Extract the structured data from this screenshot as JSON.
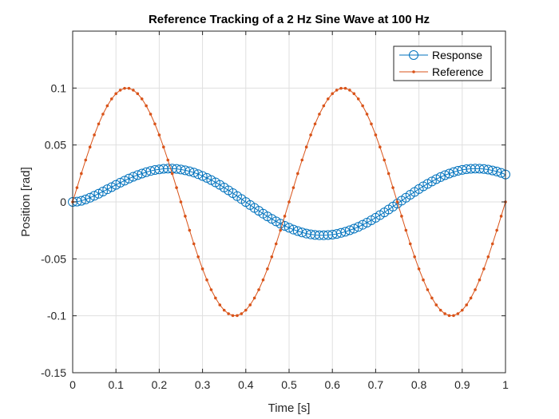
{
  "chart_data": {
    "type": "line",
    "title": "Reference Tracking of a 2 Hz Sine Wave at 100 Hz",
    "xlabel": "Time [s]",
    "ylabel": "Position [rad]",
    "xlim": [
      0,
      1
    ],
    "ylim": [
      -0.15,
      0.15
    ],
    "xticks": [
      0,
      0.1,
      0.2,
      0.3,
      0.4,
      0.5,
      0.6,
      0.7,
      0.8,
      0.9,
      1
    ],
    "xtick_labels": [
      "0",
      "0.1",
      "0.2",
      "0.3",
      "0.4",
      "0.5",
      "0.6",
      "0.7",
      "0.8",
      "0.9",
      "1"
    ],
    "yticks": [
      -0.15,
      -0.1,
      -0.05,
      0,
      0.05,
      0.1
    ],
    "ytick_labels": [
      "-0.15",
      "-0.1",
      "-0.05",
      "0",
      "0.05",
      "0.1"
    ],
    "grid": true,
    "legend_position": "top-right",
    "x": [
      0.0,
      0.01,
      0.02,
      0.03,
      0.04,
      0.05,
      0.06,
      0.07,
      0.08,
      0.09,
      0.1,
      0.11,
      0.12,
      0.13,
      0.14,
      0.15,
      0.16,
      0.17,
      0.18,
      0.19,
      0.2,
      0.21,
      0.22,
      0.23,
      0.24,
      0.25,
      0.26,
      0.27,
      0.28,
      0.29,
      0.3,
      0.31,
      0.32,
      0.33,
      0.34,
      0.35,
      0.36,
      0.37,
      0.38,
      0.39,
      0.4,
      0.41,
      0.42,
      0.43,
      0.44,
      0.45,
      0.46,
      0.47,
      0.48,
      0.49,
      0.5,
      0.51,
      0.52,
      0.53,
      0.54,
      0.55,
      0.56,
      0.57,
      0.58,
      0.59,
      0.6,
      0.61,
      0.62,
      0.63,
      0.64,
      0.65,
      0.66,
      0.67,
      0.68,
      0.69,
      0.7,
      0.71,
      0.72,
      0.73,
      0.74,
      0.75,
      0.76,
      0.77,
      0.78,
      0.79,
      0.8,
      0.81,
      0.82,
      0.83,
      0.84,
      0.85,
      0.86,
      0.87,
      0.88,
      0.89,
      0.9,
      0.91,
      0.92,
      0.93,
      0.94,
      0.95,
      0.96,
      0.97,
      0.98,
      0.99,
      1.0
    ],
    "series": [
      {
        "name": "Response",
        "color": "#0072BD",
        "marker": "circle",
        "values": [
          0.0,
          0.0003,
          0.001,
          0.0022,
          0.0037,
          0.0054,
          0.0072,
          0.0091,
          0.0111,
          0.013,
          0.015,
          0.0169,
          0.0187,
          0.0205,
          0.0221,
          0.0236,
          0.0249,
          0.0261,
          0.0272,
          0.028,
          0.0286,
          0.0291,
          0.0293,
          0.0293,
          0.029,
          0.0285,
          0.0278,
          0.0269,
          0.0258,
          0.0244,
          0.0228,
          0.0211,
          0.0192,
          0.0172,
          0.015,
          0.0126,
          0.0102,
          0.0077,
          0.0051,
          0.0025,
          -0.0001,
          -0.0027,
          -0.0053,
          -0.0078,
          -0.0103,
          -0.0127,
          -0.0149,
          -0.0171,
          -0.0191,
          -0.021,
          -0.0227,
          -0.0243,
          -0.0256,
          -0.0268,
          -0.0278,
          -0.0285,
          -0.029,
          -0.0293,
          -0.0293,
          -0.0291,
          -0.0287,
          -0.0281,
          -0.0272,
          -0.0262,
          -0.0249,
          -0.0235,
          -0.0219,
          -0.0201,
          -0.0182,
          -0.0161,
          -0.0139,
          -0.0116,
          -0.0092,
          -0.0067,
          -0.0041,
          -0.0015,
          0.0011,
          0.0037,
          0.0063,
          0.0088,
          0.0113,
          0.0137,
          0.0159,
          0.018,
          0.02,
          0.0218,
          0.0235,
          0.0249,
          0.0262,
          0.0273,
          0.0281,
          0.0287,
          0.0291,
          0.0293,
          0.0292,
          0.0289,
          0.0284,
          0.0276,
          0.0267,
          0.0255,
          0.0241
        ]
      },
      {
        "name": "Reference",
        "color": "#D95319",
        "marker": "point",
        "values": [
          0.0,
          0.0125,
          0.0249,
          0.0368,
          0.0482,
          0.0588,
          0.0685,
          0.0771,
          0.0844,
          0.0905,
          0.0951,
          0.0982,
          0.0998,
          0.0998,
          0.0982,
          0.0951,
          0.0905,
          0.0844,
          0.0771,
          0.0685,
          0.0588,
          0.0482,
          0.0368,
          0.0249,
          0.0125,
          0.0,
          -0.0125,
          -0.0249,
          -0.0368,
          -0.0482,
          -0.0588,
          -0.0685,
          -0.0771,
          -0.0844,
          -0.0905,
          -0.0951,
          -0.0982,
          -0.0998,
          -0.0998,
          -0.0982,
          -0.0951,
          -0.0905,
          -0.0844,
          -0.0771,
          -0.0685,
          -0.0588,
          -0.0482,
          -0.0368,
          -0.0249,
          -0.0125,
          0.0,
          0.0125,
          0.0249,
          0.0368,
          0.0482,
          0.0588,
          0.0685,
          0.0771,
          0.0844,
          0.0905,
          0.0951,
          0.0982,
          0.0998,
          0.0998,
          0.0982,
          0.0951,
          0.0905,
          0.0844,
          0.0771,
          0.0685,
          0.0588,
          0.0482,
          0.0368,
          0.0249,
          0.0125,
          0.0,
          -0.0125,
          -0.0249,
          -0.0368,
          -0.0482,
          -0.0588,
          -0.0685,
          -0.0771,
          -0.0844,
          -0.0905,
          -0.0951,
          -0.0982,
          -0.0998,
          -0.0998,
          -0.0982,
          -0.0951,
          -0.0905,
          -0.0844,
          -0.0771,
          -0.0685,
          -0.0588,
          -0.0482,
          -0.0368,
          -0.0249,
          -0.0125,
          0.0
        ]
      }
    ]
  }
}
